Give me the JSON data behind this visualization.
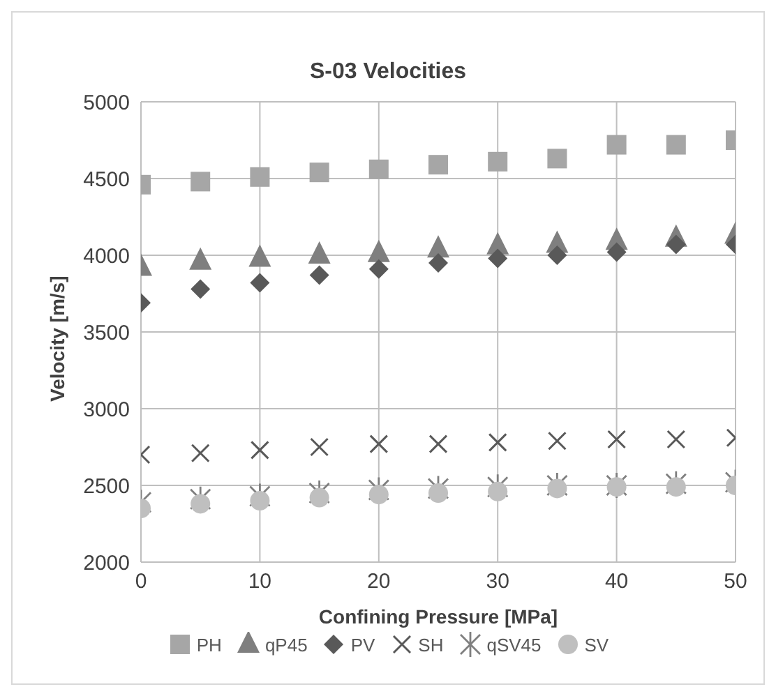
{
  "chart_data": {
    "type": "scatter",
    "title": "S-03 Velocities",
    "xlabel": "Confining Pressure [MPa]",
    "ylabel": "Velocity [m/s]",
    "x": [
      0,
      5,
      10,
      15,
      20,
      25,
      30,
      35,
      40,
      45,
      50
    ],
    "series": [
      {
        "name": "PH",
        "color": "#a6a6a6",
        "marker": "square",
        "values": [
          4460,
          4480,
          4510,
          4540,
          4560,
          4590,
          4610,
          4630,
          4720,
          4720,
          4750
        ]
      },
      {
        "name": "qP45",
        "color": "#7f7f7f",
        "marker": "triangle",
        "values": [
          3920,
          3960,
          3980,
          4000,
          4010,
          4040,
          4060,
          4070,
          4090,
          4110,
          4130
        ]
      },
      {
        "name": "PV",
        "color": "#595959",
        "marker": "diamond",
        "values": [
          3690,
          3780,
          3820,
          3870,
          3910,
          3950,
          3980,
          4000,
          4020,
          4070,
          4070
        ]
      },
      {
        "name": "SH",
        "color": "#595959",
        "marker": "cross",
        "values": [
          2700,
          2710,
          2730,
          2750,
          2770,
          2770,
          2780,
          2790,
          2800,
          2800,
          2810
        ]
      },
      {
        "name": "qSV45",
        "color": "#7f7f7f",
        "values": [
          2390,
          2410,
          2430,
          2450,
          2470,
          2480,
          2490,
          2500,
          2500,
          2510,
          2520
        ]
      },
      {
        "name": "SV",
        "color": "#bfbfbf",
        "marker": "circle",
        "values": [
          2350,
          2380,
          2400,
          2420,
          2440,
          2450,
          2460,
          2480,
          2490,
          2490,
          2500
        ]
      }
    ],
    "xlim": [
      0,
      50
    ],
    "xticks": [
      0,
      10,
      20,
      30,
      40,
      50
    ],
    "ylim": [
      2000,
      5000
    ],
    "yticks": [
      2000,
      2500,
      3000,
      3500,
      4000,
      4500,
      5000
    ],
    "grid": true,
    "legend": "bottom"
  }
}
